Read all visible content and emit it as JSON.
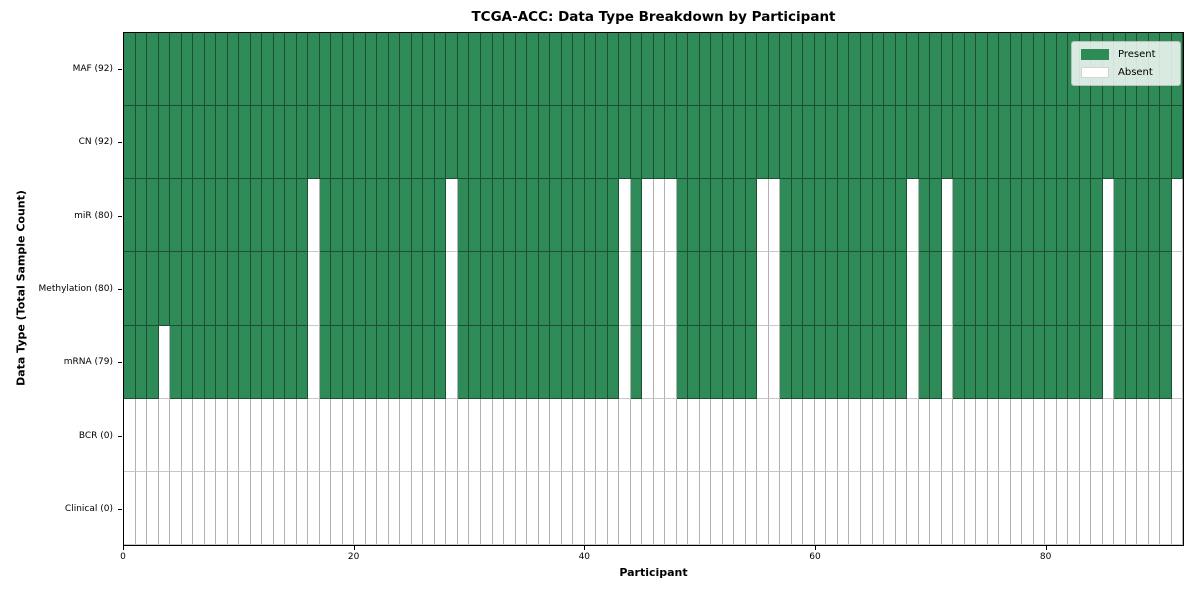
{
  "chart_data": {
    "type": "heatmap",
    "title": "TCGA-ACC: Data Type Breakdown by Participant",
    "xlabel": "Participant",
    "ylabel": "Data Type (Total Sample Count)",
    "n_participants": 92,
    "x_ticks": [
      0,
      20,
      40,
      60,
      80
    ],
    "legend_position": "upper right",
    "grid": true,
    "colors": {
      "present": "#2e8b57",
      "absent": "#ffffff"
    },
    "rows": [
      {
        "key": "maf",
        "label": "MAF (92)",
        "present_count": 92,
        "absent_participants": []
      },
      {
        "key": "cn",
        "label": "CN (92)",
        "present_count": 92,
        "absent_participants": []
      },
      {
        "key": "mir",
        "label": "miR (80)",
        "present_count": 80,
        "absent_participants": [
          16,
          28,
          43,
          45,
          46,
          47,
          55,
          56,
          68,
          71,
          85,
          91
        ]
      },
      {
        "key": "methylation",
        "label": "Methylation (80)",
        "present_count": 80,
        "absent_participants": [
          16,
          28,
          43,
          45,
          46,
          47,
          55,
          56,
          68,
          71,
          85,
          91
        ]
      },
      {
        "key": "mrna",
        "label": "mRNA (79)",
        "present_count": 79,
        "absent_participants": [
          3,
          16,
          28,
          43,
          45,
          46,
          47,
          55,
          56,
          68,
          71,
          85,
          91
        ]
      },
      {
        "key": "bcr",
        "label": "BCR (0)",
        "present_count": 0,
        "absent_participants": "all"
      },
      {
        "key": "clinical",
        "label": "Clinical (0)",
        "present_count": 0,
        "absent_participants": "all"
      }
    ],
    "legend": [
      {
        "key": "present",
        "label": "Present",
        "color": "#2e8b57"
      },
      {
        "key": "absent",
        "label": "Absent",
        "color": "#ffffff"
      }
    ]
  }
}
